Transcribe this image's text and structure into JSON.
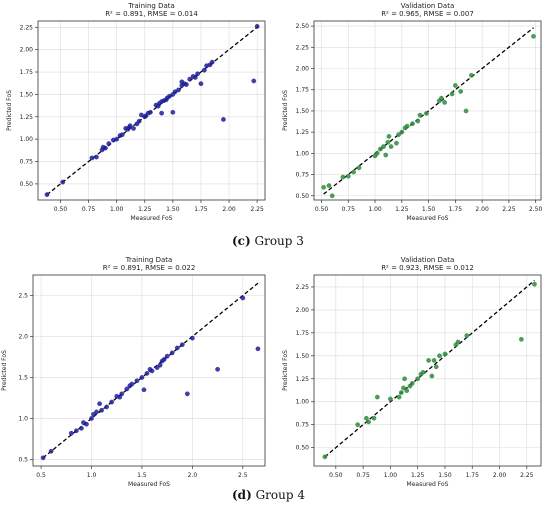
{
  "groups": [
    {
      "label": "(c)",
      "caption": "Group 3"
    },
    {
      "label": "(d)",
      "caption": "Group 4"
    }
  ],
  "colors": {
    "training": "#1f1f99",
    "validation": "#2e8b3e",
    "ideal_line": "#000000",
    "grid": "#dcdcdc"
  },
  "chart_data": [
    {
      "type": "scatter",
      "group": "Group 3",
      "title": "Training Data",
      "subtitle": "R² = 0.891, RMSE = 0.014",
      "xlabel": "Measured FoS",
      "ylabel": "Predicted FoS",
      "xlim": [
        0.3,
        2.32
      ],
      "ylim": [
        0.32,
        2.32
      ],
      "xticks": [
        0.5,
        0.75,
        1.0,
        1.25,
        1.5,
        1.75,
        2.0,
        2.25
      ],
      "xtick_labels": [
        "0.50",
        "0.75",
        "1.00",
        "1.25",
        "1.50",
        "1.75",
        "2.00",
        "2.25"
      ],
      "yticks": [
        0.5,
        0.75,
        1.0,
        1.25,
        1.5,
        1.75,
        2.0,
        2.25
      ],
      "ytick_labels": [
        "0.50",
        "0.75",
        "1.00",
        "1.25",
        "1.50",
        "1.75",
        "2.00",
        "2.25"
      ],
      "ideal_line": [
        0.38,
        2.27
      ],
      "grid": true,
      "series": [
        {
          "color": "#1f1f99",
          "points": [
            [
              0.38,
              0.38
            ],
            [
              0.52,
              0.52
            ],
            [
              0.78,
              0.79
            ],
            [
              0.82,
              0.8
            ],
            [
              0.87,
              0.88
            ],
            [
              0.88,
              0.91
            ],
            [
              0.9,
              0.9
            ],
            [
              0.93,
              0.95
            ],
            [
              0.97,
              0.99
            ],
            [
              1.0,
              1.0
            ],
            [
              1.03,
              1.04
            ],
            [
              1.05,
              1.05
            ],
            [
              1.08,
              1.12
            ],
            [
              1.1,
              1.11
            ],
            [
              1.11,
              1.13
            ],
            [
              1.12,
              1.15
            ],
            [
              1.15,
              1.12
            ],
            [
              1.18,
              1.17
            ],
            [
              1.2,
              1.2
            ],
            [
              1.22,
              1.27
            ],
            [
              1.25,
              1.25
            ],
            [
              1.26,
              1.26
            ],
            [
              1.28,
              1.29
            ],
            [
              1.3,
              1.3
            ],
            [
              1.35,
              1.38
            ],
            [
              1.37,
              1.37
            ],
            [
              1.38,
              1.4
            ],
            [
              1.4,
              1.42
            ],
            [
              1.42,
              1.43
            ],
            [
              1.44,
              1.44
            ],
            [
              1.45,
              1.46
            ],
            [
              1.47,
              1.48
            ],
            [
              1.5,
              1.5
            ],
            [
              1.52,
              1.53
            ],
            [
              1.55,
              1.55
            ],
            [
              1.58,
              1.6
            ],
            [
              1.6,
              1.62
            ],
            [
              1.62,
              1.61
            ],
            [
              1.65,
              1.67
            ],
            [
              1.68,
              1.7
            ],
            [
              1.7,
              1.69
            ],
            [
              1.72,
              1.73
            ],
            [
              1.78,
              1.77
            ],
            [
              1.8,
              1.82
            ],
            [
              1.83,
              1.83
            ],
            [
              1.85,
              1.86
            ],
            [
              1.5,
              1.3
            ],
            [
              1.58,
              1.64
            ],
            [
              1.75,
              1.62
            ],
            [
              1.95,
              1.22
            ],
            [
              2.22,
              1.65
            ],
            [
              2.25,
              2.26
            ],
            [
              1.4,
              1.29
            ]
          ]
        }
      ]
    },
    {
      "type": "scatter",
      "group": "Group 3",
      "title": "Validation Data",
      "subtitle": "R² = 0.965, RMSE = 0.007",
      "xlabel": "Measured FoS",
      "ylabel": "Predicted FoS",
      "xlim": [
        0.43,
        2.55
      ],
      "ylim": [
        0.45,
        2.56
      ],
      "xticks": [
        0.5,
        0.75,
        1.0,
        1.25,
        1.5,
        1.75,
        2.0,
        2.25,
        2.5
      ],
      "xtick_labels": [
        "0.50",
        "0.75",
        "1.00",
        "1.25",
        "1.50",
        "1.75",
        "2.00",
        "2.25",
        "2.50"
      ],
      "yticks": [
        0.5,
        0.75,
        1.0,
        1.25,
        1.5,
        1.75,
        2.0,
        2.25,
        2.5
      ],
      "ytick_labels": [
        "0.50",
        "0.75",
        "1.00",
        "1.25",
        "1.50",
        "1.75",
        "2.00",
        "2.25",
        "2.50"
      ],
      "ideal_line": [
        0.52,
        2.48
      ],
      "grid": true,
      "series": [
        {
          "color": "#2e8b3e",
          "points": [
            [
              0.52,
              0.6
            ],
            [
              0.57,
              0.62
            ],
            [
              0.6,
              0.5
            ],
            [
              0.7,
              0.72
            ],
            [
              0.75,
              0.73
            ],
            [
              0.8,
              0.78
            ],
            [
              0.85,
              0.83
            ],
            [
              1.0,
              0.97
            ],
            [
              1.02,
              1.0
            ],
            [
              1.05,
              1.05
            ],
            [
              1.08,
              1.08
            ],
            [
              1.1,
              0.98
            ],
            [
              1.12,
              1.13
            ],
            [
              1.13,
              1.2
            ],
            [
              1.15,
              1.08
            ],
            [
              1.2,
              1.12
            ],
            [
              1.22,
              1.22
            ],
            [
              1.25,
              1.25
            ],
            [
              1.28,
              1.3
            ],
            [
              1.3,
              1.32
            ],
            [
              1.35,
              1.35
            ],
            [
              1.4,
              1.38
            ],
            [
              1.42,
              1.45
            ],
            [
              1.48,
              1.47
            ],
            [
              1.6,
              1.62
            ],
            [
              1.62,
              1.65
            ],
            [
              1.65,
              1.6
            ],
            [
              1.72,
              1.7
            ],
            [
              1.75,
              1.8
            ],
            [
              1.8,
              1.73
            ],
            [
              1.85,
              1.5
            ],
            [
              1.9,
              1.92
            ],
            [
              2.48,
              2.38
            ]
          ]
        }
      ]
    },
    {
      "type": "scatter",
      "group": "Group 4",
      "title": "Training Data",
      "subtitle": "R² = 0.891, RMSE = 0.022",
      "xlabel": "Measured FoS",
      "ylabel": "Predicted FoS",
      "xlim": [
        0.42,
        2.72
      ],
      "ylim": [
        0.42,
        2.75
      ],
      "xticks": [
        0.5,
        1.0,
        1.5,
        2.0,
        2.5
      ],
      "xtick_labels": [
        "0.5",
        "1.0",
        "1.5",
        "2.0",
        "2.5"
      ],
      "yticks": [
        0.5,
        1.0,
        1.5,
        2.0,
        2.5
      ],
      "ytick_labels": [
        "0.5",
        "1.0",
        "1.5",
        "2.0",
        "2.5"
      ],
      "ideal_line": [
        0.52,
        2.65
      ],
      "grid": true,
      "series": [
        {
          "color": "#1f1f99",
          "points": [
            [
              0.52,
              0.52
            ],
            [
              0.6,
              0.6
            ],
            [
              0.8,
              0.82
            ],
            [
              0.85,
              0.85
            ],
            [
              0.9,
              0.88
            ],
            [
              0.92,
              0.95
            ],
            [
              0.95,
              0.93
            ],
            [
              1.0,
              1.0
            ],
            [
              1.02,
              1.05
            ],
            [
              1.05,
              1.08
            ],
            [
              1.08,
              1.18
            ],
            [
              1.1,
              1.1
            ],
            [
              1.15,
              1.14
            ],
            [
              1.2,
              1.2
            ],
            [
              1.25,
              1.27
            ],
            [
              1.28,
              1.26
            ],
            [
              1.3,
              1.3
            ],
            [
              1.35,
              1.36
            ],
            [
              1.38,
              1.4
            ],
            [
              1.4,
              1.42
            ],
            [
              1.45,
              1.46
            ],
            [
              1.5,
              1.5
            ],
            [
              1.52,
              1.35
            ],
            [
              1.55,
              1.55
            ],
            [
              1.58,
              1.6
            ],
            [
              1.6,
              1.58
            ],
            [
              1.65,
              1.62
            ],
            [
              1.7,
              1.7
            ],
            [
              1.72,
              1.72
            ],
            [
              1.75,
              1.76
            ],
            [
              1.8,
              1.8
            ],
            [
              1.85,
              1.86
            ],
            [
              1.9,
              1.9
            ],
            [
              1.95,
              1.3
            ],
            [
              2.0,
              1.98
            ],
            [
              2.25,
              1.6
            ],
            [
              2.5,
              2.47
            ],
            [
              2.65,
              1.85
            ],
            [
              1.68,
              1.65
            ]
          ]
        }
      ]
    },
    {
      "type": "scatter",
      "group": "Group 4",
      "title": "Validation Data",
      "subtitle": "R² = 0.923, RMSE = 0.012",
      "xlabel": "Measured FoS",
      "ylabel": "Predicted FoS",
      "xlim": [
        0.3,
        2.38
      ],
      "ylim": [
        0.3,
        2.38
      ],
      "xticks": [
        0.5,
        0.75,
        1.0,
        1.25,
        1.5,
        1.75,
        2.0,
        2.25
      ],
      "xtick_labels": [
        "0.50",
        "0.75",
        "1.00",
        "1.25",
        "1.50",
        "1.75",
        "2.00",
        "2.25"
      ],
      "yticks": [
        0.5,
        0.75,
        1.0,
        1.25,
        1.5,
        1.75,
        2.0,
        2.25
      ],
      "ytick_labels": [
        "0.50",
        "0.75",
        "1.00",
        "1.25",
        "1.50",
        "1.75",
        "2.00",
        "2.25"
      ],
      "ideal_line": [
        0.4,
        2.32
      ],
      "grid": true,
      "series": [
        {
          "color": "#2e8b3e",
          "points": [
            [
              0.4,
              0.4
            ],
            [
              0.7,
              0.75
            ],
            [
              0.78,
              0.82
            ],
            [
              0.8,
              0.78
            ],
            [
              0.85,
              0.82
            ],
            [
              0.88,
              1.05
            ],
            [
              1.0,
              1.03
            ],
            [
              1.08,
              1.05
            ],
            [
              1.1,
              1.1
            ],
            [
              1.12,
              1.15
            ],
            [
              1.13,
              1.25
            ],
            [
              1.15,
              1.12
            ],
            [
              1.18,
              1.17
            ],
            [
              1.2,
              1.2
            ],
            [
              1.25,
              1.25
            ],
            [
              1.28,
              1.3
            ],
            [
              1.3,
              1.32
            ],
            [
              1.35,
              1.45
            ],
            [
              1.38,
              1.28
            ],
            [
              1.4,
              1.45
            ],
            [
              1.42,
              1.38
            ],
            [
              1.45,
              1.5
            ],
            [
              1.5,
              1.52
            ],
            [
              1.6,
              1.62
            ],
            [
              1.62,
              1.65
            ],
            [
              1.7,
              1.72
            ],
            [
              2.2,
              1.68
            ],
            [
              2.32,
              2.28
            ]
          ]
        }
      ]
    }
  ]
}
